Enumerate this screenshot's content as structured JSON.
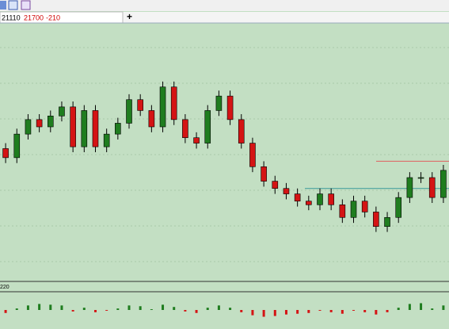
{
  "header": {
    "fields": [
      "21110",
      "21700",
      "-210"
    ]
  },
  "indicator": {
    "label": "220"
  },
  "chart_data": {
    "type": "candlestick",
    "ylim": [
      20800,
      22200
    ],
    "open": [
      21520,
      21470,
      21600,
      21680,
      21640,
      21700,
      21750,
      21530,
      21730,
      21530,
      21600,
      21660,
      21790,
      21730,
      21640,
      21860,
      21680,
      21580,
      21550,
      21730,
      21810,
      21680,
      21550,
      21420,
      21340,
      21300,
      21270,
      21230,
      21210,
      21270,
      21210,
      21140,
      21230,
      21170,
      21090,
      21140,
      21250,
      21360,
      21360,
      21250
    ],
    "high": [
      21550,
      21630,
      21710,
      21710,
      21730,
      21780,
      21780,
      21760,
      21760,
      21630,
      21690,
      21820,
      21820,
      21760,
      21890,
      21890,
      21710,
      21610,
      21760,
      21840,
      21840,
      21710,
      21580,
      21450,
      21370,
      21330,
      21300,
      21260,
      21300,
      21300,
      21240,
      21260,
      21260,
      21200,
      21170,
      21280,
      21390,
      21390,
      21390,
      21430
    ],
    "low": [
      21440,
      21440,
      21570,
      21610,
      21610,
      21670,
      21500,
      21500,
      21500,
      21500,
      21570,
      21630,
      21700,
      21610,
      21610,
      21650,
      21550,
      21520,
      21520,
      21700,
      21650,
      21520,
      21390,
      21310,
      21270,
      21240,
      21200,
      21180,
      21180,
      21180,
      21110,
      21110,
      21140,
      21060,
      21060,
      21110,
      21220,
      21330,
      21220,
      21220
    ],
    "close": [
      21470,
      21600,
      21680,
      21640,
      21700,
      21750,
      21530,
      21730,
      21530,
      21600,
      21660,
      21790,
      21730,
      21640,
      21860,
      21680,
      21580,
      21550,
      21730,
      21810,
      21680,
      21550,
      21420,
      21340,
      21300,
      21270,
      21230,
      21210,
      21270,
      21210,
      21140,
      21230,
      21170,
      21090,
      21140,
      21250,
      21360,
      21360,
      21250,
      21400
    ],
    "up_color": "#1f7d1f",
    "down_color": "#d41414",
    "levels": [
      {
        "value": 21450,
        "color": "#e06060"
      },
      {
        "value": 21300,
        "color": "#3a9a9a"
      }
    ],
    "oscillator": {
      "ylim": [
        -20,
        20
      ],
      "values": [
        -4,
        2,
        6,
        8,
        7,
        6,
        -2,
        3,
        -3,
        -1,
        2,
        6,
        5,
        1,
        7,
        4,
        -2,
        -4,
        3,
        6,
        3,
        -3,
        -7,
        -9,
        -8,
        -6,
        -5,
        -4,
        -1,
        -3,
        -5,
        -1,
        -3,
        -6,
        -3,
        3,
        8,
        9,
        2,
        6
      ]
    }
  }
}
